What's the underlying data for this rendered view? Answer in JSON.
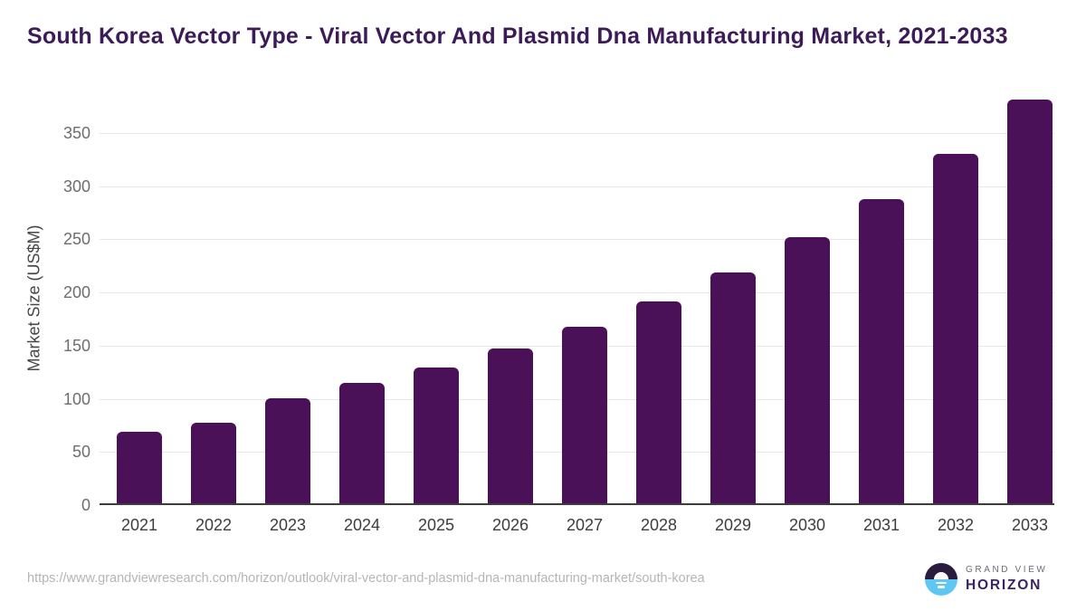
{
  "title": "South Korea Vector Type - Viral Vector And Plasmid Dna Manufacturing Market, 2021-2033",
  "chart_data": {
    "type": "bar",
    "categories": [
      "2021",
      "2022",
      "2023",
      "2024",
      "2025",
      "2026",
      "2027",
      "2028",
      "2029",
      "2030",
      "2031",
      "2032",
      "2033"
    ],
    "values": [
      67,
      76,
      99,
      113,
      128,
      146,
      166,
      190,
      217,
      250,
      286,
      329,
      380
    ],
    "title": "South Korea Vector Type - Viral Vector And Plasmid Dna Manufacturing Market, 2021-2033",
    "xlabel": "",
    "ylabel": "Market Size (US$M)",
    "ylim": [
      0,
      390
    ],
    "yticks": [
      0,
      50,
      100,
      150,
      200,
      250,
      300,
      350
    ],
    "grid": true,
    "legend": "none",
    "bar_color_hex": "#4A1158"
  },
  "footer": {
    "source_url": "https://www.grandviewresearch.com/horizon/outlook/viral-vector-and-plasmid-dna-manufacturing-market/south-korea",
    "logo": {
      "line1": "GRAND VIEW",
      "line2": "HORIZON"
    }
  },
  "colors": {
    "bar": "#4A1158",
    "title": "#3C1B56",
    "logo_dark": "#2B1B41",
    "logo_blue": "#5EC7F2"
  }
}
